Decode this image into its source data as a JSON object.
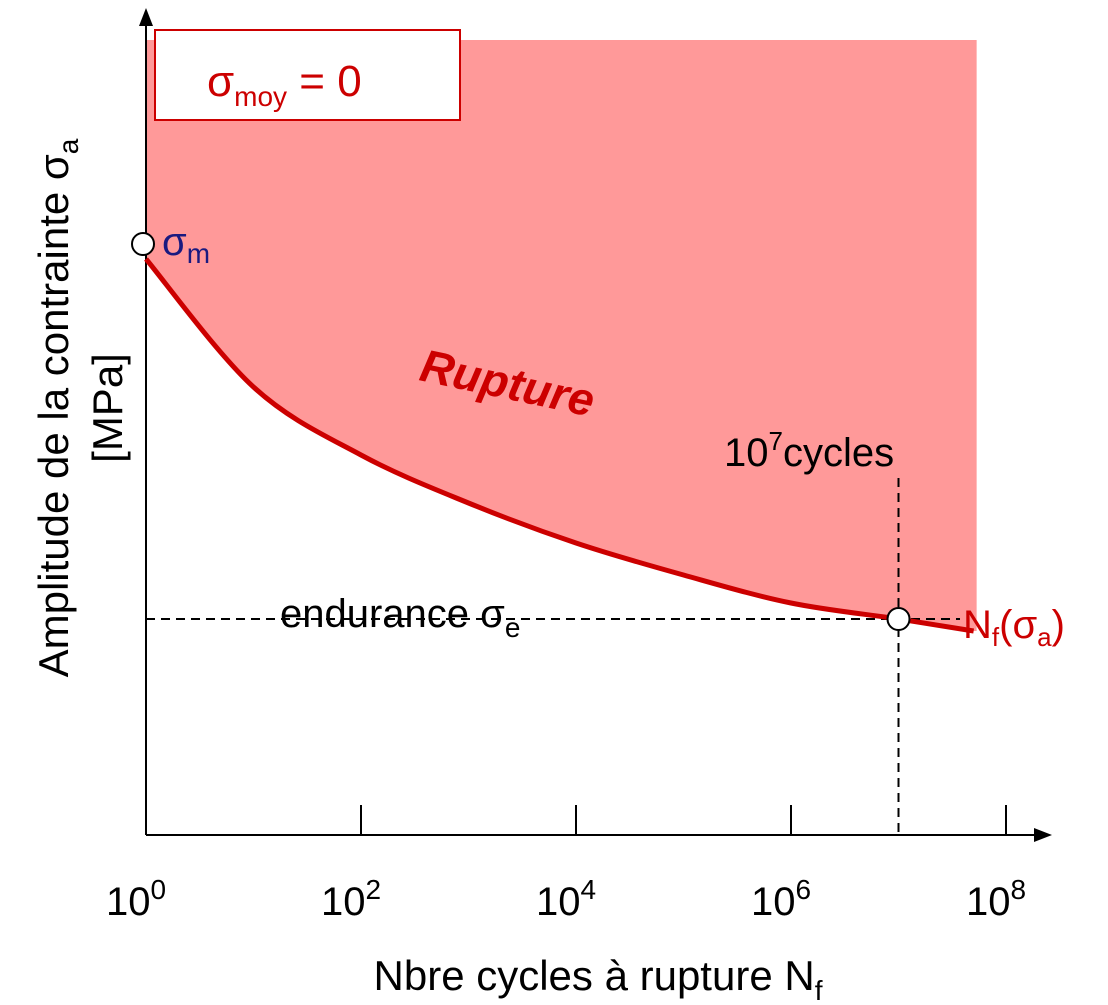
{
  "chart_data": {
    "type": "line",
    "x_scale": "log",
    "x_ticks": [
      {
        "value": 1,
        "base": "10",
        "exp": "0"
      },
      {
        "value": 100,
        "base": "10",
        "exp": "2"
      },
      {
        "value": 10000,
        "base": "10",
        "exp": "4"
      },
      {
        "value": 1000000,
        "base": "10",
        "exp": "6"
      },
      {
        "value": 100000000,
        "base": "10",
        "exp": "8"
      }
    ],
    "xlabel": {
      "main": "Nbre cycles à rupture N",
      "sub": "f"
    },
    "ylabel": {
      "main": "Amplitude de la contrainte σ",
      "sub": "a",
      "unit": "[MPa]"
    },
    "y_ticks_shown": false,
    "grid": false,
    "series": [
      {
        "name": "Nf(σa)",
        "name_main": "N",
        "name_sub": "f",
        "name_paren": "(σ",
        "name_paren_sub": "a",
        "name_close": ")",
        "color": "#cc0000",
        "description_points": [
          {
            "x": 1,
            "y": 0.72
          },
          {
            "x": 10,
            "y": 0.56
          },
          {
            "x": 100,
            "y": 0.475
          },
          {
            "x": 1000,
            "y": 0.415
          },
          {
            "x": 10000,
            "y": 0.365
          },
          {
            "x": 100000,
            "y": 0.325
          },
          {
            "x": 1000000,
            "y": 0.29
          },
          {
            "x": 10000000,
            "y": 0.27
          },
          {
            "x": 50000000,
            "y": 0.255
          }
        ]
      }
    ],
    "region": {
      "label": "Rupture",
      "fill": "#ff9999"
    },
    "points": [
      {
        "id": "sigma_m",
        "x": 1,
        "y": 0.72,
        "label_main": "σ",
        "label_sub": "m",
        "label_color": "#1a1a80"
      },
      {
        "id": "endurance",
        "x": 10000000,
        "y": 0.27,
        "label_main": "10",
        "label_sup": "7",
        "label_rest": "cycles"
      }
    ],
    "reference_lines": {
      "horizontal_label_main": "endurance σ",
      "horizontal_label_sub": "e",
      "vertical_at_x": 10000000
    },
    "legend_box": {
      "main": "σ",
      "sub": "moy",
      "rest": " = 0",
      "color": "#cc0000"
    }
  }
}
